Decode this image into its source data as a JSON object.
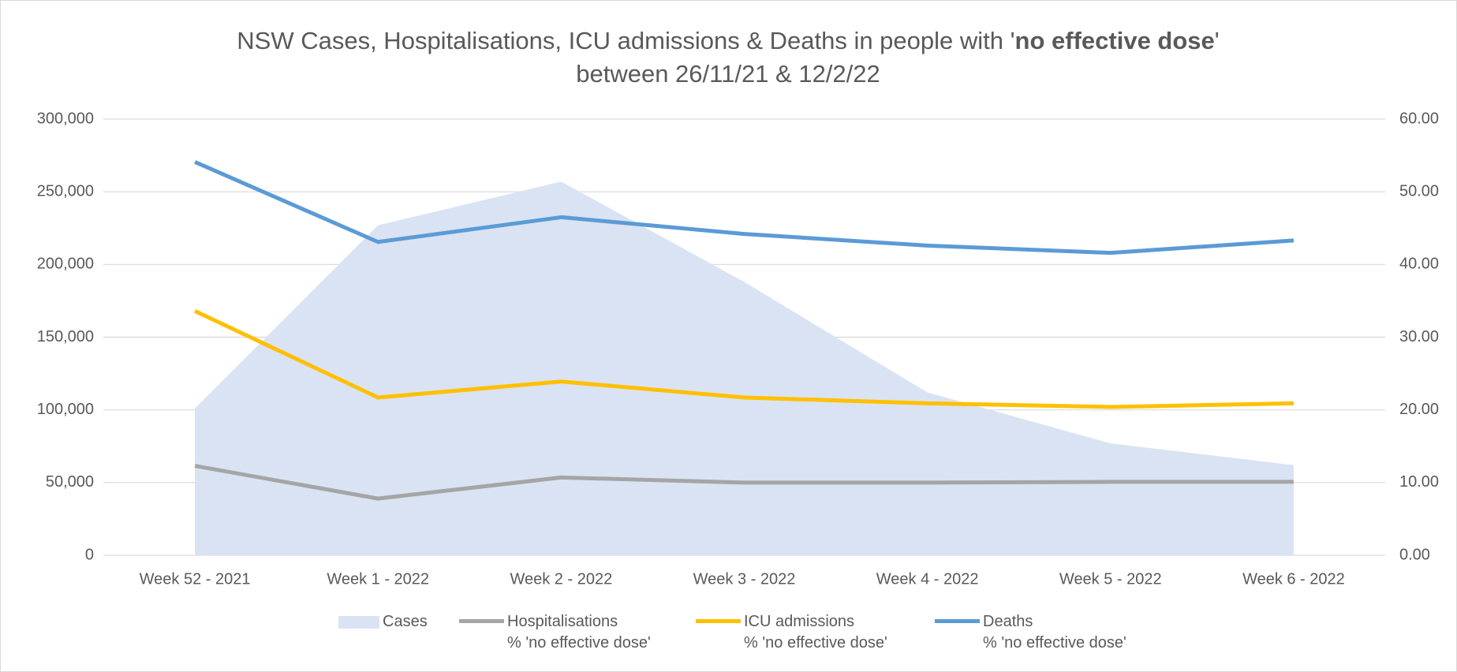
{
  "chart_data": {
    "type": "line",
    "title": [
      "NSW Cases, Hospitalisations, ICU admissions & Deaths in people with '",
      "no effective dose",
      "'"
    ],
    "subtitle": "between 26/11/21 & 12/2/22",
    "categories": [
      "Week 52 - 2021",
      "Week 1 - 2022",
      "Week 2 - 2022",
      "Week 3 - 2022",
      "Week 4 - 2022",
      "Week 5 - 2022",
      "Week 6 - 2022"
    ],
    "series": [
      {
        "name": "Cases",
        "type": "area",
        "axis": "y",
        "color": "#dae3f3",
        "values": [
          101000,
          227000,
          257000,
          188000,
          112000,
          77000,
          62000
        ]
      },
      {
        "name": "Hospitalisations\n% 'no effective dose'",
        "type": "line",
        "axis": "y2",
        "color": "#a5a5a5",
        "values": [
          12.3,
          7.8,
          10.7,
          10.0,
          10.0,
          10.1,
          10.1
        ]
      },
      {
        "name": "ICU admissions\n% 'no effective dose'",
        "type": "line",
        "axis": "y2",
        "color": "#ffc000",
        "values": [
          33.6,
          21.7,
          23.9,
          21.7,
          20.9,
          20.4,
          20.9
        ]
      },
      {
        "name": "Deaths\n% 'no effective dose'",
        "type": "line",
        "axis": "y2",
        "color": "#5b9bd5",
        "values": [
          54.1,
          43.1,
          46.5,
          44.2,
          42.6,
          41.6,
          43.3
        ]
      }
    ],
    "ylim": [
      0,
      300000
    ],
    "yticks": [
      0,
      {
        "value": 50000,
        "label": "50,000"
      },
      {
        "value": 100000,
        "label": "100,000"
      },
      {
        "value": 150000,
        "label": "150,000"
      },
      {
        "value": 200000,
        "label": "200,000"
      },
      {
        "value": 250000,
        "label": "250,000"
      },
      {
        "value": 300000,
        "label": "300,000"
      }
    ],
    "y2lim": [
      0,
      60
    ],
    "y2ticks": [
      {
        "value": 0,
        "label": "0.00"
      },
      {
        "value": 10,
        "label": "10.00"
      },
      {
        "value": 20,
        "label": "20.00"
      },
      {
        "value": 30,
        "label": "30.00"
      },
      {
        "value": 40,
        "label": "40.00"
      },
      {
        "value": 50,
        "label": "50.00"
      },
      {
        "value": 60,
        "label": "60.00"
      }
    ],
    "grid": true,
    "legend": "bottom"
  }
}
